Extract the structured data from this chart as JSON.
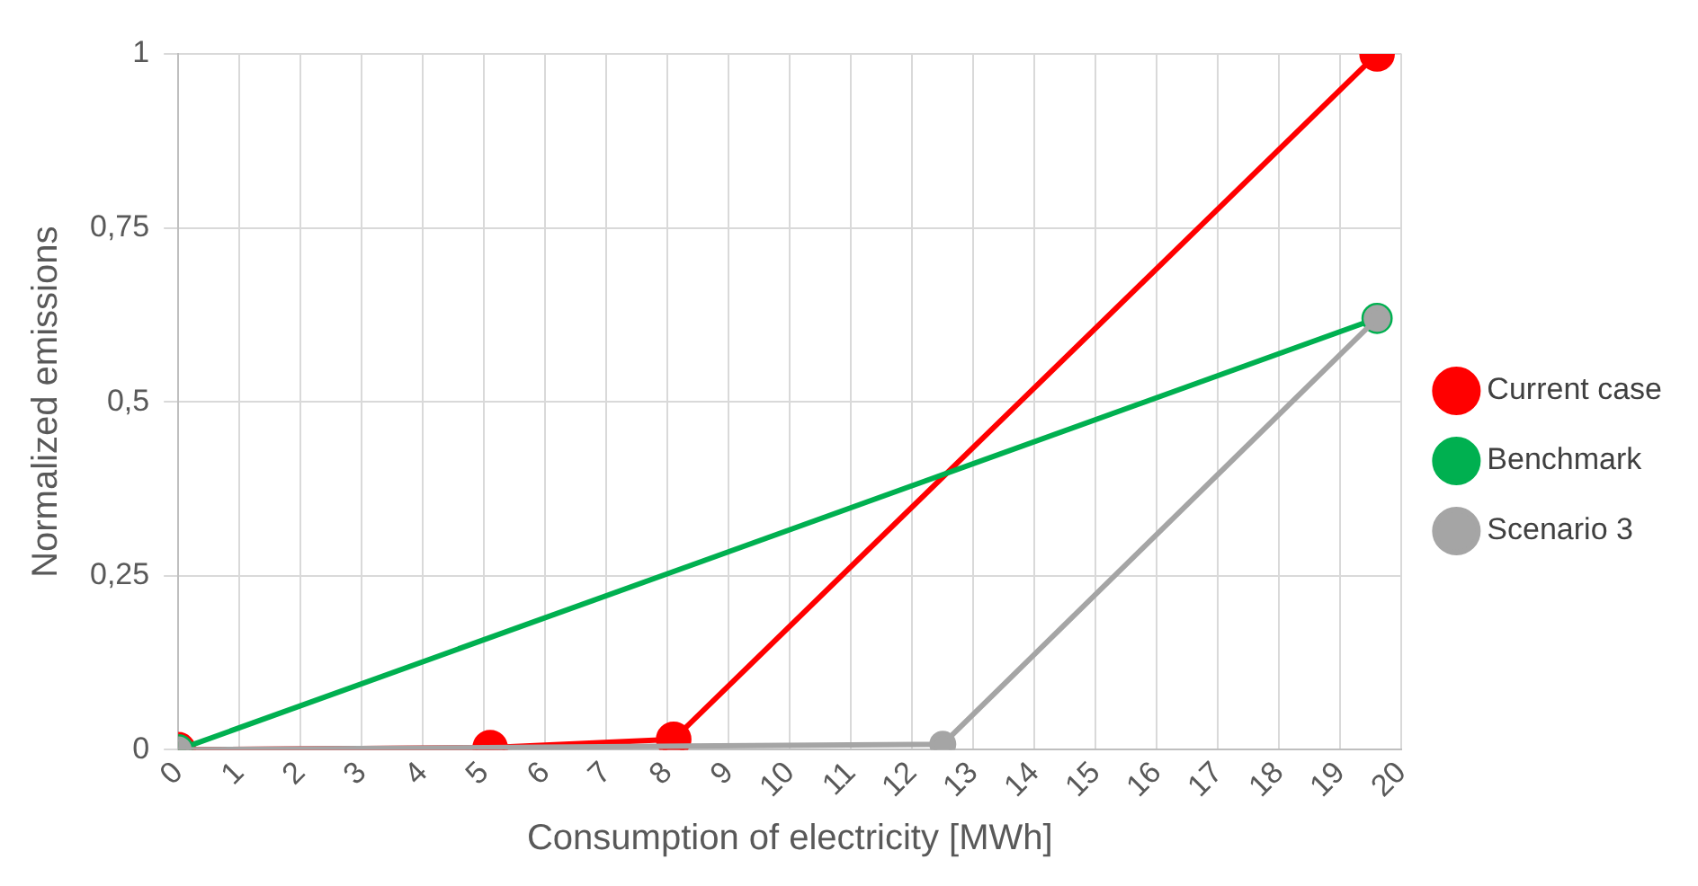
{
  "chart_data": {
    "type": "line",
    "xlabel": "Consumption of electricity [MWh]",
    "ylabel": "Normalized emissions",
    "xlim": [
      0,
      20
    ],
    "xticks": [
      0,
      1,
      2,
      3,
      4,
      5,
      6,
      7,
      8,
      9,
      10,
      11,
      12,
      13,
      14,
      15,
      16,
      17,
      18,
      19,
      20
    ],
    "ylim": [
      0,
      1
    ],
    "yticks": [
      0,
      {
        "value": 0.25,
        "label": "0,25"
      },
      {
        "value": 0.5,
        "label": "0,5"
      },
      {
        "value": 0.75,
        "label": "0,75"
      },
      1
    ],
    "series": [
      {
        "name": "Current case",
        "color": "#ff0000",
        "x": [
          0,
          5.1,
          8.1,
          19.6
        ],
        "values": [
          0,
          0.003,
          0.015,
          1
        ]
      },
      {
        "name": "Benchmark",
        "color": "#00b050",
        "x": [
          0,
          19.6
        ],
        "values": [
          0,
          0.62
        ]
      },
      {
        "name": "Scenario 3",
        "color": "#a5a5a5",
        "x": [
          0,
          12.5,
          19.6
        ],
        "values": [
          0,
          0.008,
          0.62
        ]
      }
    ],
    "grid": true,
    "legend": "right",
    "marker": "circle",
    "line_style": "solid"
  }
}
